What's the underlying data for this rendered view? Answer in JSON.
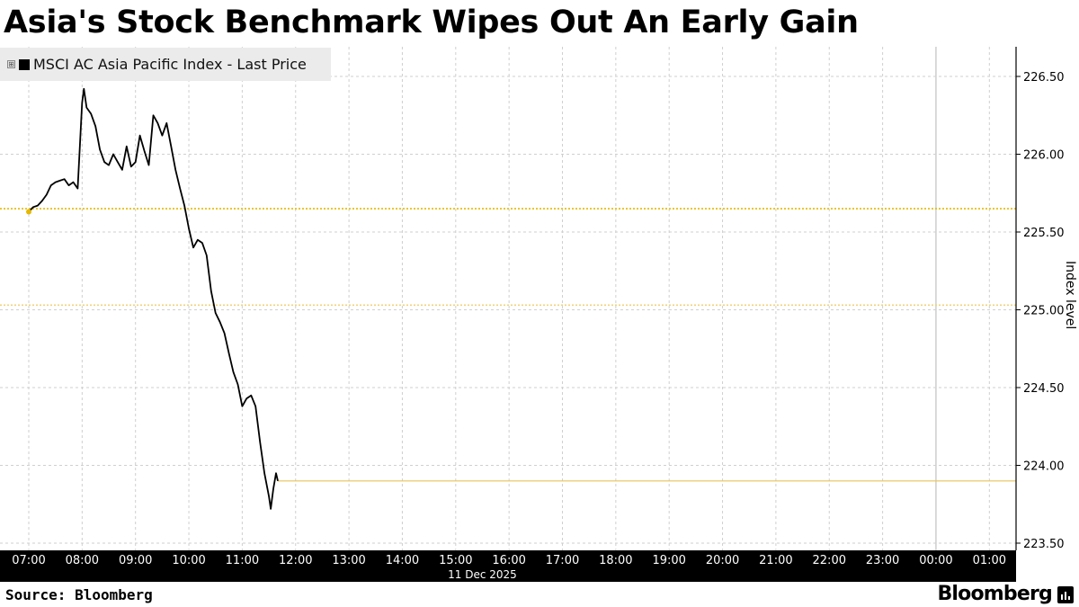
{
  "title": "Asia's Stock Benchmark Wipes Out An Early Gain",
  "legend": {
    "label": "MSCI AC Asia Pacific Index - Last Price",
    "expand_icon": "⊞",
    "color": "#000000"
  },
  "source": "Source: Bloomberg",
  "brand": "Bloomberg",
  "chart_data": {
    "type": "line",
    "title": "Asia's Stock Benchmark Wipes Out An Early Gain",
    "ylabel": "Index level",
    "xlabel": "11 Dec 2025",
    "date_label": "11 Dec 2025",
    "x_tick_labels": [
      "07:00",
      "08:00",
      "09:00",
      "10:00",
      "11:00",
      "12:00",
      "13:00",
      "14:00",
      "15:00",
      "16:00",
      "17:00",
      "18:00",
      "19:00",
      "20:00",
      "21:00",
      "22:00",
      "23:00",
      "00:00",
      "01:00"
    ],
    "y_tick_labels": [
      "226.50",
      "226.00",
      "225.50",
      "225.00",
      "224.50",
      "224.00",
      "223.50"
    ],
    "ylim": [
      223.5,
      226.6
    ],
    "grid": true,
    "legend_position": "top-left",
    "reference_lines": [
      {
        "value": 225.65,
        "style": "dotted",
        "color": "#e6b800"
      },
      {
        "value": 225.03,
        "style": "dotted",
        "color": "#f2d27a"
      }
    ],
    "last_price_line": {
      "value": 223.9,
      "color": "#e8c35a"
    },
    "series": [
      {
        "color": "#000000",
        "x": [
          "07:00",
          "07:05",
          "07:10",
          "07:15",
          "07:20",
          "07:25",
          "07:30",
          "07:35",
          "07:40",
          "07:45",
          "07:50",
          "07:55",
          "08:00",
          "08:02",
          "08:05",
          "08:10",
          "08:15",
          "08:20",
          "08:25",
          "08:30",
          "08:35",
          "08:40",
          "08:45",
          "08:50",
          "08:55",
          "09:00",
          "09:05",
          "09:10",
          "09:15",
          "09:20",
          "09:25",
          "09:30",
          "09:35",
          "09:40",
          "09:45",
          "09:50",
          "09:55",
          "10:00",
          "10:05",
          "10:10",
          "10:15",
          "10:20",
          "10:25",
          "10:30",
          "10:35",
          "10:40",
          "10:45",
          "10:50",
          "10:55",
          "11:00",
          "11:05",
          "11:10",
          "11:15",
          "11:20",
          "11:25",
          "11:30",
          "11:32",
          "11:35",
          "11:38",
          "11:40"
        ],
        "values": [
          225.63,
          225.66,
          225.67,
          225.7,
          225.74,
          225.8,
          225.82,
          225.83,
          225.84,
          225.8,
          225.82,
          225.78,
          226.33,
          226.42,
          226.3,
          226.26,
          226.18,
          226.03,
          225.95,
          225.93,
          226.0,
          225.95,
          225.9,
          226.05,
          225.92,
          225.95,
          226.12,
          226.02,
          225.93,
          226.25,
          226.2,
          226.12,
          226.2,
          226.05,
          225.9,
          225.78,
          225.67,
          225.52,
          225.4,
          225.45,
          225.43,
          225.35,
          225.12,
          224.98,
          224.92,
          224.85,
          224.72,
          224.6,
          224.52,
          224.38,
          224.43,
          224.45,
          224.38,
          224.15,
          223.95,
          223.8,
          223.72,
          223.85,
          223.95,
          223.9
        ]
      }
    ]
  }
}
